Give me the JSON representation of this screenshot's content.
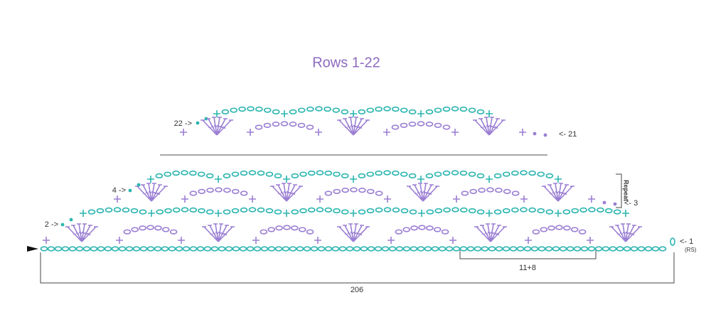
{
  "title": "Rows 1-22",
  "labels": {
    "row_22": "22 ->",
    "row_21": "<- 21",
    "row_4": "4 ->",
    "row_3": "<- 3",
    "row_2": "2 ->",
    "row_1": "<- 1",
    "right_side": "(RS)",
    "repeat": "Repeat",
    "repeat_count": "11+8",
    "total": 206
  }
}
